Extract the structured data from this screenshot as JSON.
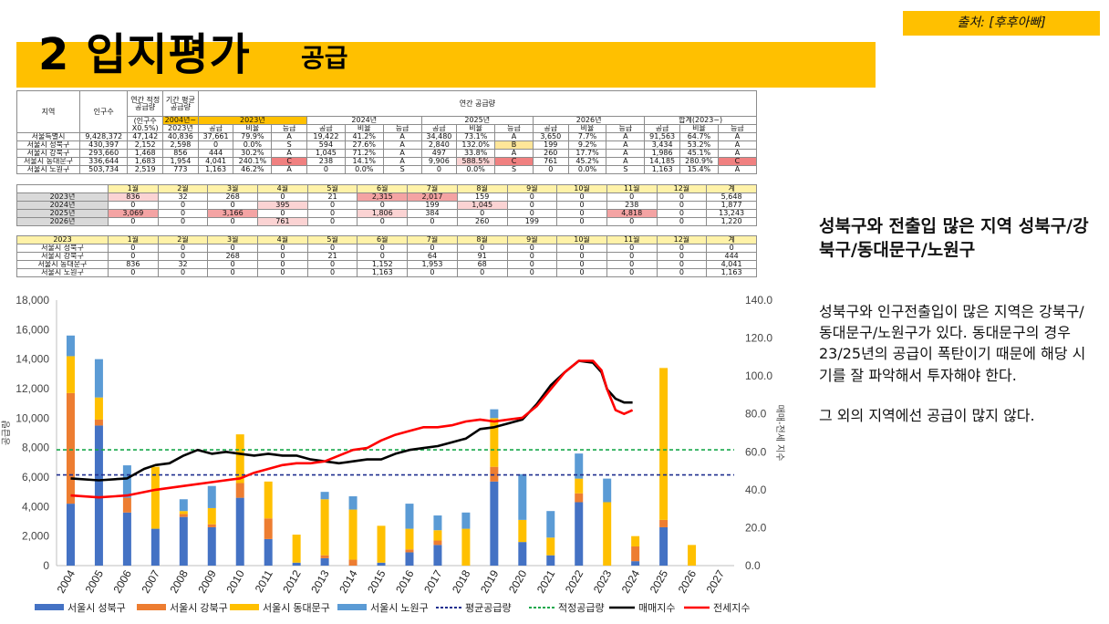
{
  "header": {
    "title_main": "2 입지평가",
    "title_sub": "공급",
    "source": "출처: [후후아빠]"
  },
  "table1": {
    "col_region": "지역",
    "col_pop": "인구수",
    "col_yearly_proper": "연간 적정 공급량",
    "col_period_avg": "기간 평균 공급량",
    "col_yearly_supply": "연간 공급량",
    "sub_pop_ratio": "(인구수 X0.5%)",
    "sub_since": "2004년~",
    "sub_2023": "2023년",
    "years": [
      "2023년",
      "2024년",
      "2025년",
      "2026년",
      "합계(2023~)"
    ],
    "sub_labels": [
      "공급",
      "비율",
      "등급"
    ],
    "rows": [
      {
        "region": "서울특별시",
        "pop": "9,428,372",
        "proper": "47,142",
        "avg": "40,836",
        "vals": [
          "37,661",
          "79.9%",
          "A",
          "19,422",
          "41.2%",
          "A",
          "34,480",
          "73.1%",
          "A",
          "3,650",
          "7.7%",
          "A",
          "91,563",
          "64.7%",
          "A"
        ]
      },
      {
        "region": "서울시 성북구",
        "pop": "430,397",
        "proper": "2,152",
        "avg": "2,598",
        "vals": [
          "0",
          "0.0%",
          "S",
          "594",
          "27.6%",
          "A",
          "2,840",
          "132.0%",
          "B",
          "199",
          "9.2%",
          "A",
          "3,434",
          "53.2%",
          "A"
        ]
      },
      {
        "region": "서울시 강북구",
        "pop": "293,660",
        "proper": "1,468",
        "avg": "856",
        "vals": [
          "444",
          "30.2%",
          "A",
          "1,045",
          "71.2%",
          "A",
          "497",
          "33.8%",
          "A",
          "260",
          "17.7%",
          "A",
          "1,986",
          "45.1%",
          "A"
        ]
      },
      {
        "region": "서울시 동대문구",
        "pop": "336,644",
        "proper": "1,683",
        "avg": "1,954",
        "vals": [
          "4,041",
          "240.1%",
          "C",
          "238",
          "14.1%",
          "A",
          "9,906",
          "588.5%",
          "C",
          "761",
          "45.2%",
          "A",
          "14,185",
          "280.9%",
          "C"
        ]
      },
      {
        "region": "서울시 노원구",
        "pop": "503,734",
        "proper": "2,519",
        "avg": "773",
        "vals": [
          "1,163",
          "46.2%",
          "A",
          "0",
          "0.0%",
          "S",
          "0",
          "0.0%",
          "S",
          "0",
          "0.0%",
          "S",
          "1,163",
          "15.4%",
          "A"
        ]
      }
    ]
  },
  "table2": {
    "months": [
      "1월",
      "2월",
      "3월",
      "4월",
      "5월",
      "6월",
      "7월",
      "8월",
      "9월",
      "10월",
      "11월",
      "12월",
      "계"
    ],
    "rows": [
      {
        "label": "2023년",
        "vals": [
          "836",
          "32",
          "268",
          "0",
          "21",
          "2,315",
          "2,017",
          "159",
          "0",
          "0",
          "0",
          "0",
          "5,648"
        ]
      },
      {
        "label": "2024년",
        "vals": [
          "0",
          "0",
          "0",
          "395",
          "0",
          "0",
          "199",
          "1,045",
          "0",
          "0",
          "238",
          "0",
          "1,877"
        ]
      },
      {
        "label": "2025년",
        "vals": [
          "3,069",
          "0",
          "3,166",
          "0",
          "0",
          "1,806",
          "384",
          "0",
          "0",
          "0",
          "4,818",
          "0",
          "13,243"
        ]
      },
      {
        "label": "2026년",
        "vals": [
          "0",
          "0",
          "0",
          "761",
          "0",
          "0",
          "0",
          "260",
          "199",
          "0",
          "0",
          "0",
          "1,220"
        ]
      }
    ]
  },
  "table3": {
    "corner": "2023",
    "months": [
      "1월",
      "2월",
      "3월",
      "4월",
      "5월",
      "6월",
      "7월",
      "8월",
      "9월",
      "10월",
      "11월",
      "12월",
      "계"
    ],
    "rows": [
      {
        "label": "서울시 성북구",
        "vals": [
          "0",
          "0",
          "0",
          "0",
          "0",
          "0",
          "0",
          "0",
          "0",
          "0",
          "0",
          "0",
          "0"
        ]
      },
      {
        "label": "서울시 강북구",
        "vals": [
          "0",
          "0",
          "268",
          "0",
          "21",
          "0",
          "64",
          "91",
          "0",
          "0",
          "0",
          "0",
          "444"
        ]
      },
      {
        "label": "서울시 동대문구",
        "vals": [
          "836",
          "32",
          "0",
          "0",
          "0",
          "1,152",
          "1,953",
          "68",
          "0",
          "0",
          "0",
          "0",
          "4,041"
        ]
      },
      {
        "label": "서울시 노원구",
        "vals": [
          "0",
          "0",
          "0",
          "0",
          "0",
          "1,163",
          "0",
          "0",
          "0",
          "0",
          "0",
          "0",
          "1,163"
        ]
      }
    ]
  },
  "chart_data": {
    "type": "bar",
    "stacked": true,
    "title": "",
    "xlabel": "",
    "ylabel": "공급량",
    "y2label": "매매-전세 지수",
    "ylim": [
      0,
      18000
    ],
    "y2lim": [
      0,
      140
    ],
    "yticks": [
      "0",
      "2,000",
      "4,000",
      "6,000",
      "8,000",
      "10,000",
      "12,000",
      "14,000",
      "16,000",
      "18,000"
    ],
    "y2ticks": [
      "0.0",
      "20.0",
      "40.0",
      "60.0",
      "80.0",
      "100.0",
      "120.0",
      "140.0"
    ],
    "categories": [
      "2004",
      "2005",
      "2006",
      "2007",
      "2008",
      "2009",
      "2010",
      "2011",
      "2012",
      "2013",
      "2014",
      "2015",
      "2016",
      "2017",
      "2018",
      "2019",
      "2020",
      "2021",
      "2022",
      "2023",
      "2024",
      "2025",
      "2026",
      "2027"
    ],
    "series": [
      {
        "name": "서울시 성북구",
        "color": "#4472c4",
        "values": [
          4200,
          9500,
          3600,
          2500,
          3300,
          2600,
          4600,
          1800,
          200,
          500,
          0,
          200,
          900,
          1400,
          0,
          5700,
          1600,
          700,
          4300,
          0,
          300,
          2600,
          0,
          0
        ]
      },
      {
        "name": "서울시 강북구",
        "color": "#ed7d31",
        "values": [
          7500,
          400,
          1000,
          0,
          200,
          200,
          1000,
          1400,
          0,
          200,
          400,
          0,
          200,
          300,
          0,
          1000,
          0,
          0,
          600,
          0,
          1000,
          500,
          0,
          0
        ]
      },
      {
        "name": "서울시 동대문구",
        "color": "#ffc000",
        "values": [
          2500,
          1500,
          0,
          4200,
          200,
          1100,
          3300,
          2500,
          1900,
          3800,
          3400,
          2500,
          1400,
          700,
          2500,
          3300,
          1500,
          1200,
          1000,
          4300,
          700,
          10300,
          1400,
          0
        ]
      },
      {
        "name": "서울시 노원구",
        "color": "#5b9bd5",
        "values": [
          1400,
          2600,
          2200,
          0,
          800,
          1500,
          0,
          0,
          0,
          500,
          900,
          0,
          1700,
          1000,
          1100,
          600,
          3100,
          1800,
          1700,
          1600,
          0,
          0,
          0,
          0
        ]
      }
    ],
    "lines": [
      {
        "name": "평균공급량",
        "axis": "left",
        "style": "dashed",
        "color": "#1f2f8f",
        "value": 6150
      },
      {
        "name": "적정공급량",
        "axis": "left",
        "style": "dashed",
        "color": "#18a84b",
        "value": 7850
      },
      {
        "name": "매매지수",
        "axis": "right",
        "color": "#000000",
        "points": [
          [
            2004,
            46
          ],
          [
            2005,
            45
          ],
          [
            2006,
            46
          ],
          [
            2006.6,
            51
          ],
          [
            2007,
            53
          ],
          [
            2007.5,
            54
          ],
          [
            2008,
            58
          ],
          [
            2008.5,
            61
          ],
          [
            2009,
            59
          ],
          [
            2009.5,
            60
          ],
          [
            2010,
            59
          ],
          [
            2010.5,
            58
          ],
          [
            2011,
            59
          ],
          [
            2011.5,
            58
          ],
          [
            2012,
            58
          ],
          [
            2012.5,
            56
          ],
          [
            2013,
            55
          ],
          [
            2013.5,
            54
          ],
          [
            2014,
            55
          ],
          [
            2014.5,
            56
          ],
          [
            2015,
            56
          ],
          [
            2015.5,
            59
          ],
          [
            2016,
            61
          ],
          [
            2016.5,
            62
          ],
          [
            2017,
            63
          ],
          [
            2017.5,
            65
          ],
          [
            2018,
            67
          ],
          [
            2018.5,
            72
          ],
          [
            2019,
            73
          ],
          [
            2019.5,
            75
          ],
          [
            2020,
            77
          ],
          [
            2020.5,
            85
          ],
          [
            2021,
            95
          ],
          [
            2021.5,
            102
          ],
          [
            2022,
            108
          ],
          [
            2022.5,
            107
          ],
          [
            2022.8,
            102
          ],
          [
            2023,
            93
          ],
          [
            2023.3,
            88
          ],
          [
            2023.6,
            86
          ],
          [
            2023.9,
            86
          ]
        ]
      },
      {
        "name": "전세지수",
        "axis": "right",
        "color": "#ff0000",
        "points": [
          [
            2004,
            37
          ],
          [
            2005,
            36
          ],
          [
            2006,
            37
          ],
          [
            2007,
            40
          ],
          [
            2008,
            42
          ],
          [
            2009,
            44
          ],
          [
            2010,
            46
          ],
          [
            2010.5,
            49
          ],
          [
            2011,
            51
          ],
          [
            2011.5,
            53
          ],
          [
            2012,
            54
          ],
          [
            2012.5,
            54
          ],
          [
            2013,
            55
          ],
          [
            2013.5,
            58
          ],
          [
            2014,
            61
          ],
          [
            2014.5,
            62
          ],
          [
            2015,
            66
          ],
          [
            2015.5,
            69
          ],
          [
            2016,
            71
          ],
          [
            2016.5,
            73
          ],
          [
            2017,
            73
          ],
          [
            2017.5,
            74
          ],
          [
            2018,
            76
          ],
          [
            2018.5,
            77
          ],
          [
            2019,
            76
          ],
          [
            2019.5,
            77
          ],
          [
            2020,
            78
          ],
          [
            2020.5,
            84
          ],
          [
            2021,
            93
          ],
          [
            2021.5,
            102
          ],
          [
            2022,
            108
          ],
          [
            2022.5,
            108
          ],
          [
            2022.8,
            103
          ],
          [
            2023,
            93
          ],
          [
            2023.3,
            82
          ],
          [
            2023.6,
            80
          ],
          [
            2023.9,
            82
          ]
        ]
      }
    ],
    "legend": [
      "서울시 성북구",
      "서울시 강북구",
      "서울시 동대문구",
      "서울시 노원구",
      "평균공급량",
      "적정공급량",
      "매매지수",
      "전세지수"
    ],
    "legend_position": "bottom",
    "grid": false
  },
  "side": {
    "heading": "성북구와 전출입 많은 지역 성북구/강북구/동대문구/노원구",
    "paragraph1": "성북구와 인구전출입이 많은 지역은 강북구/동대문구/노원구가 있다. 동대문구의 경우 23/25년의 공급이 폭탄이기 때문에 해당 시기를 잘 파악해서 투자해야 한다.",
    "paragraph2": "그 외의 지역에선 공급이 많지 않다."
  }
}
